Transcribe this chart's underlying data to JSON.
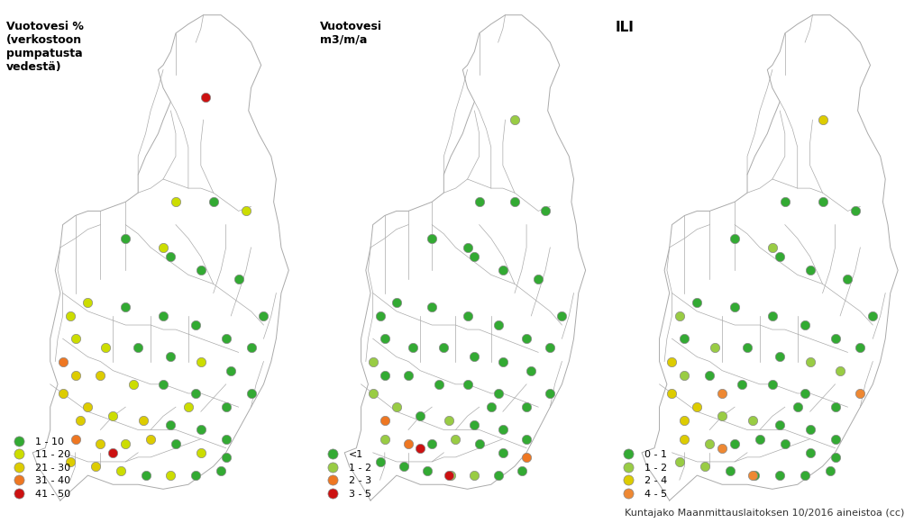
{
  "background_color": "#ffffff",
  "panels": [
    {
      "title": "Vuotovesi %\n(verkostoon\npumpatusta\nvedestä)",
      "legend_labels": [
        "1 - 10",
        "11 - 20",
        "21 - 30",
        "31 - 40",
        "41 - 50"
      ],
      "legend_colors": [
        "#33aa33",
        "#ccdd00",
        "#ddcc00",
        "#ee7722",
        "#cc1111"
      ],
      "title_fontsize": 9,
      "title_fontweight": "bold"
    },
    {
      "title": "Vuotovesi\nm3/m/a",
      "legend_labels": [
        "<1",
        "1 - 2",
        "2 - 3",
        "3 - 5"
      ],
      "legend_colors": [
        "#33aa33",
        "#99cc44",
        "#ee7722",
        "#cc1111"
      ],
      "title_fontsize": 9,
      "title_fontweight": "bold"
    },
    {
      "title": "ILI",
      "legend_labels": [
        "0 - 1",
        "1 - 2",
        "2 - 4",
        "4 - 5"
      ],
      "legend_colors": [
        "#33aa33",
        "#99cc44",
        "#ddcc00",
        "#ee8833"
      ],
      "title_fontsize": 11,
      "title_fontweight": "bold"
    }
  ],
  "dot_size": 55,
  "dot_edgecolor": "#888888",
  "dot_linewidth": 0.5,
  "footer": "Kuntajako Maanmittauslaitoksen 10/2016 aineistoa (cc)",
  "footer_fontsize": 8,
  "lon_min": 19.0,
  "lon_max": 31.5,
  "lat_min": 59.3,
  "lat_max": 70.2
}
